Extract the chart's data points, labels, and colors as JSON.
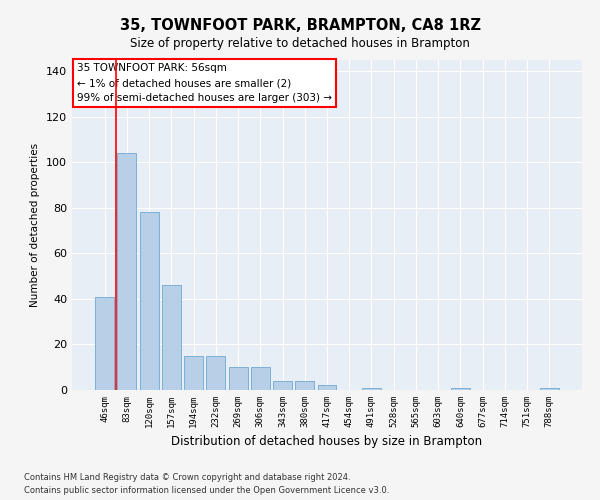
{
  "title": "35, TOWNFOOT PARK, BRAMPTON, CA8 1RZ",
  "subtitle": "Size of property relative to detached houses in Brampton",
  "xlabel": "Distribution of detached houses by size in Brampton",
  "ylabel": "Number of detached properties",
  "categories": [
    "46sqm",
    "83sqm",
    "120sqm",
    "157sqm",
    "194sqm",
    "232sqm",
    "269sqm",
    "306sqm",
    "343sqm",
    "380sqm",
    "417sqm",
    "454sqm",
    "491sqm",
    "528sqm",
    "565sqm",
    "603sqm",
    "640sqm",
    "677sqm",
    "714sqm",
    "751sqm",
    "788sqm"
  ],
  "values": [
    41,
    104,
    78,
    46,
    15,
    15,
    10,
    10,
    4,
    4,
    2,
    0,
    1,
    0,
    0,
    0,
    1,
    0,
    0,
    0,
    1
  ],
  "bar_color": "#b8cfe8",
  "bar_edge_color": "#6fa8d4",
  "annotation_box_text": "35 TOWNFOOT PARK: 56sqm\n← 1% of detached houses are smaller (2)\n99% of semi-detached houses are larger (303) →",
  "ylim": [
    0,
    145
  ],
  "yticks": [
    0,
    20,
    40,
    60,
    80,
    100,
    120,
    140
  ],
  "background_color": "#e8eef5",
  "grid_color": "#ffffff",
  "footer_line1": "Contains HM Land Registry data © Crown copyright and database right 2024.",
  "footer_line2": "Contains public sector information licensed under the Open Government Licence v3.0."
}
